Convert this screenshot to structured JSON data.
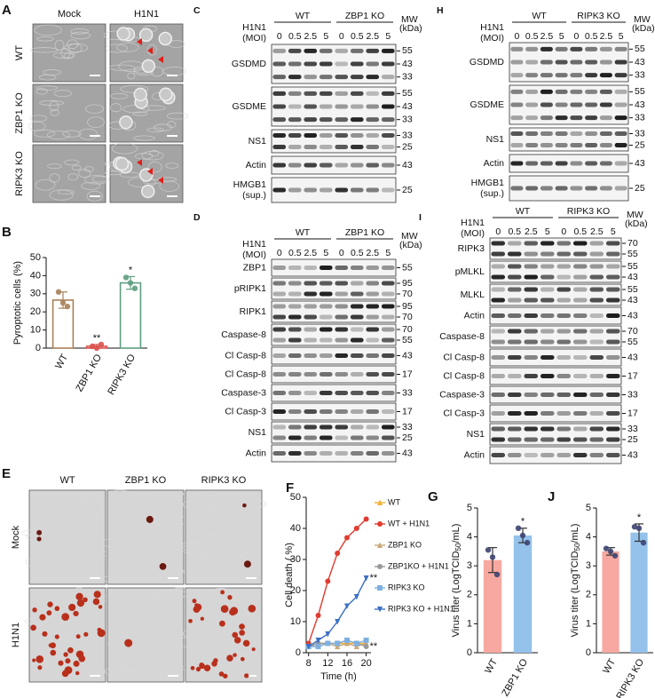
{
  "panel_a": {
    "letter": "A",
    "columns": [
      "Mock",
      "H1N1"
    ],
    "rows": [
      "WT",
      "ZBP1 KO",
      "RIPK3 KO"
    ]
  },
  "panel_e": {
    "letter": "E",
    "columns": [
      "WT",
      "ZBP1 KO",
      "RIPK3 KO"
    ],
    "rows": [
      "Mock",
      "H1N1"
    ]
  },
  "blots": [
    {
      "letter": "C",
      "treatment": "H1N1",
      "moi_label": "(MOI)",
      "groups": [
        "WT",
        "ZBP1 KO"
      ],
      "doses": [
        "0",
        "0.5",
        "2.5",
        "5",
        "0",
        "0.5",
        "2.5",
        "5"
      ],
      "mw_label": "MW",
      "mw_unit": "(kDa)",
      "rows": [
        {
          "label": "GSDMD",
          "mw": [
            "55",
            "43",
            "33"
          ]
        },
        {
          "label": "GSDME",
          "mw": [
            "55",
            "43",
            "33"
          ]
        },
        {
          "label": "NS1",
          "mw": [
            "33",
            "25"
          ]
        },
        {
          "label": "Actin",
          "mw": [
            "43"
          ]
        },
        {
          "label": "HMGB1",
          "sublabel": "(sup.)",
          "mw": [
            "25"
          ]
        }
      ]
    },
    {
      "letter": "D",
      "treatment": "H1N1",
      "moi_label": "(MOI)",
      "groups": [
        "WT",
        "ZBP1 KO"
      ],
      "doses": [
        "0",
        "0.5",
        "2.5",
        "5",
        "0",
        "0.5",
        "2.5",
        "5"
      ],
      "mw_label": "MW",
      "mw_unit": "(kDa)",
      "rows": [
        {
          "label": "ZBP1",
          "mw": [
            "55"
          ]
        },
        {
          "label": "pRIPK1",
          "mw": [
            "95",
            "70"
          ]
        },
        {
          "label": "RIPK1",
          "mw": [
            "95",
            "70"
          ]
        },
        {
          "label": "Caspase-8",
          "mw": [
            "70",
            "55"
          ]
        },
        {
          "label": "Cl Casp-8",
          "mw": [
            "43"
          ]
        },
        {
          "label": "Cl Casp-8",
          "mw": [
            "17"
          ]
        },
        {
          "label": "Caspase-3",
          "mw": [
            "33"
          ]
        },
        {
          "label": "Cl Casp-3",
          "mw": [
            "17"
          ]
        },
        {
          "label": "NS1",
          "mw": [
            "33",
            "25"
          ]
        },
        {
          "label": "Actin",
          "mw": [
            "43"
          ]
        }
      ]
    },
    {
      "letter": "H",
      "treatment": "H1N1",
      "moi_label": "(MOI)",
      "groups": [
        "WT",
        "RIPK3 KO"
      ],
      "doses": [
        "0",
        "0.5",
        "2.5",
        "5",
        "0",
        "0.5",
        "2.5",
        "5"
      ],
      "mw_label": "MW",
      "mw_unit": "(kDa)",
      "rows": [
        {
          "label": "GSDMD",
          "mw": [
            "55",
            "43",
            "33"
          ]
        },
        {
          "label": "GSDME",
          "mw": [
            "55",
            "43",
            "33"
          ]
        },
        {
          "label": "NS1",
          "mw": [
            "33",
            "25"
          ]
        },
        {
          "label": "Actin",
          "mw": [
            "43"
          ]
        },
        {
          "label": "HMGB1",
          "sublabel": "(sup.)",
          "mw": [
            "25"
          ]
        }
      ]
    },
    {
      "letter": "I",
      "treatment": "H1N1",
      "moi_label": "(MOI)",
      "groups": [
        "WT",
        "RIPK3 KO"
      ],
      "doses": [
        "0",
        "0.5",
        "2.5",
        "5",
        "0",
        "0.5",
        "2.5",
        "5"
      ],
      "mw_label": "MW",
      "mw_unit": "(kDa)",
      "rows": [
        {
          "label": "RIPK3",
          "mw": [
            "70",
            "55"
          ]
        },
        {
          "label": "pMLKL",
          "mw": [
            "55",
            "43"
          ]
        },
        {
          "label": "MLKL",
          "mw": [
            "55",
            "43"
          ]
        },
        {
          "label": "Actin",
          "mw": [
            "43"
          ]
        },
        {
          "label": "Caspase-8",
          "mw": [
            "70",
            "55"
          ]
        },
        {
          "label": "Cl Casp-8",
          "mw": [
            "43"
          ]
        },
        {
          "label": "Cl Casp-8",
          "mw": [
            "17"
          ]
        },
        {
          "label": "Caspase-3",
          "mw": [
            "33"
          ]
        },
        {
          "label": "Cl Casp-3",
          "mw": [
            "17"
          ]
        },
        {
          "label": "NS1",
          "mw": [
            "33",
            "25"
          ]
        },
        {
          "label": "Actin",
          "mw": [
            "43"
          ]
        }
      ]
    }
  ],
  "chart_data": [
    {
      "letter": "B",
      "type": "bar",
      "hollow": true,
      "categories": [
        "WT",
        "ZBP1 KO",
        "RIPK3 KO"
      ],
      "values": [
        26.5,
        1,
        36
      ],
      "errors": [
        4.5,
        1,
        3.5
      ],
      "points": [
        [
          31,
          25,
          23
        ],
        [
          1,
          0,
          2
        ],
        [
          39,
          36,
          33
        ]
      ],
      "colors": [
        "#a8825a",
        "#d9534f",
        "#5f9e80"
      ],
      "significance": [
        null,
        "**",
        "*"
      ],
      "y_label": "Pyroptotic cells (%)",
      "ylim": [
        0,
        50
      ],
      "yticks": [
        0,
        10,
        20,
        30,
        40,
        50
      ]
    },
    {
      "letter": "F",
      "type": "line",
      "x": [
        8,
        10,
        12,
        14,
        16,
        18,
        20
      ],
      "xlim": [
        7.5,
        21
      ],
      "xticks": [
        8,
        12,
        16,
        20
      ],
      "ylim": [
        0,
        50
      ],
      "yticks": [
        0,
        10,
        20,
        30,
        40,
        50
      ],
      "x_label": "Time (h)",
      "y_label": "Cell death ( %)",
      "series": [
        {
          "name": "WT",
          "color": "#f2b134",
          "marker": "triangle",
          "values": [
            2,
            3,
            3,
            3,
            3,
            3,
            3
          ]
        },
        {
          "name": "WT + H1N1",
          "color": "#e03c31",
          "marker": "circle",
          "values": [
            3,
            12,
            23,
            32,
            37,
            40,
            43
          ]
        },
        {
          "name": "ZBP1 KO",
          "color": "#c8a878",
          "marker": "triangle",
          "values": [
            2,
            2,
            3,
            2,
            3,
            2,
            3
          ]
        },
        {
          "name": "ZBP1KO + H1N1",
          "color": "#9a9a9a",
          "marker": "circle",
          "values": [
            2,
            3,
            3,
            3,
            4,
            3,
            2
          ]
        },
        {
          "name": "RIPK3 KO",
          "color": "#7fb0e0",
          "marker": "square",
          "values": [
            2,
            2,
            3,
            3,
            4,
            3,
            4
          ]
        },
        {
          "name": "RIPK3 KO + H1N1",
          "color": "#3b6fc4",
          "marker": "triangle-down",
          "values": [
            2,
            4,
            6,
            10,
            15,
            18,
            24
          ]
        }
      ],
      "significance": [
        null,
        null,
        null,
        "**",
        null,
        "**"
      ]
    },
    {
      "letter": "G",
      "type": "bar",
      "hollow": false,
      "categories": [
        "WT",
        "ZBP1 KO"
      ],
      "values": [
        3.2,
        4.05
      ],
      "errors": [
        0.43,
        0.25
      ],
      "points": [
        [
          3.55,
          3.3,
          2.7
        ],
        [
          4.3,
          4.05,
          3.8
        ]
      ],
      "colors": [
        "#f7a8a0",
        "#94c2ea"
      ],
      "significance": [
        null,
        "*"
      ],
      "y_label": [
        "Virus titer (LogTCID",
        "50",
        "/mL)"
      ],
      "ylim": [
        0,
        5
      ],
      "yticks": [
        0,
        1,
        2,
        3,
        4,
        5
      ]
    },
    {
      "letter": "J",
      "type": "bar",
      "hollow": false,
      "categories": [
        "WT",
        "RIPK3 KO"
      ],
      "values": [
        3.5,
        4.15
      ],
      "errors": [
        0.13,
        0.3
      ],
      "points": [
        [
          3.6,
          3.5,
          3.35
        ],
        [
          4.35,
          4.3,
          3.8
        ]
      ],
      "colors": [
        "#f7a8a0",
        "#94c2ea"
      ],
      "significance": [
        null,
        "*"
      ],
      "y_label": [
        "Virus titer (LogTCID",
        "50",
        "/mL)"
      ],
      "ylim": [
        0,
        5
      ],
      "yticks": [
        0,
        1,
        2,
        3,
        4,
        5
      ]
    }
  ]
}
